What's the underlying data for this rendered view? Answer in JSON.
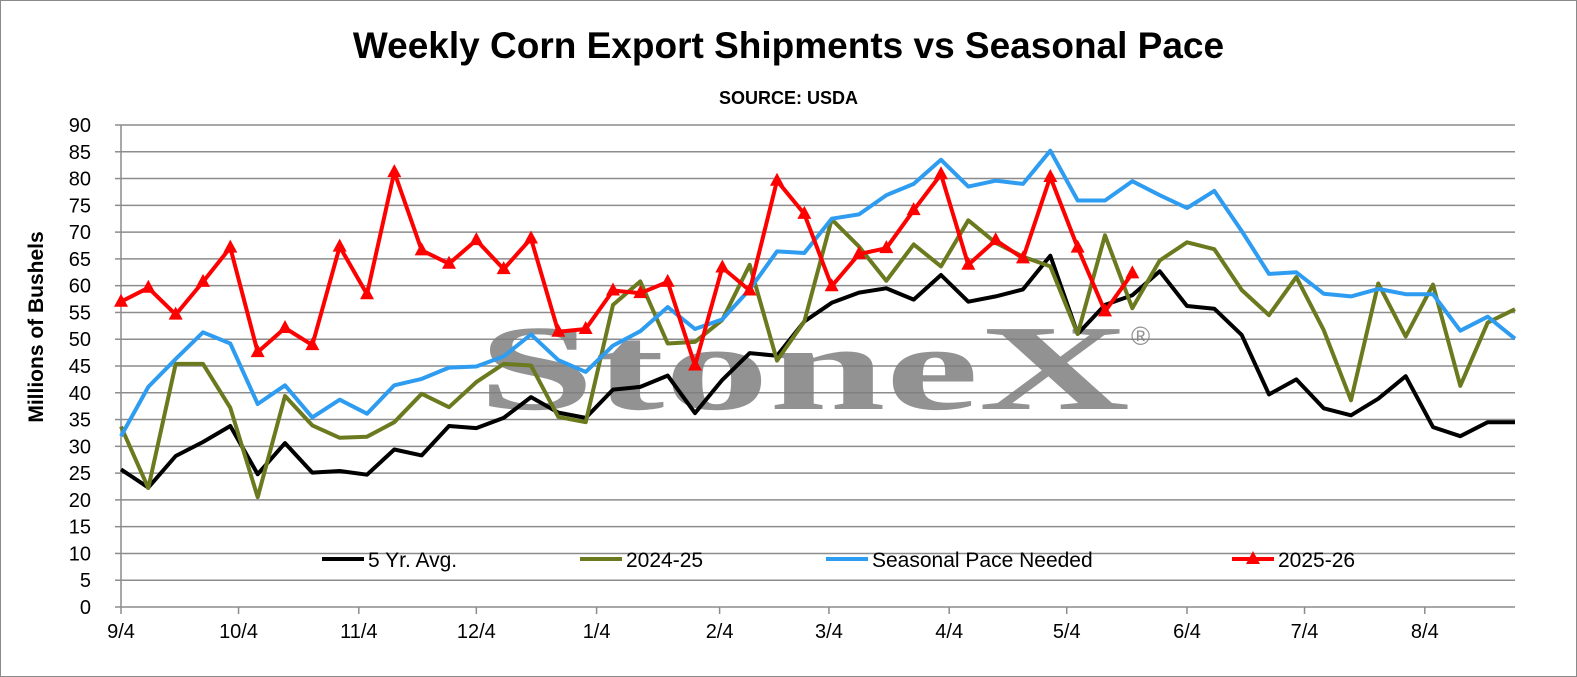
{
  "chart_data": {
    "type": "line",
    "title": "Weekly Corn Export Shipments vs Seasonal Pace",
    "subtitle": "SOURCE: USDA",
    "xlabel": "",
    "ylabel": "Millions of Bushels",
    "ylim": [
      0,
      90
    ],
    "yticks": [
      0,
      5,
      10,
      15,
      20,
      25,
      30,
      35,
      40,
      45,
      50,
      55,
      60,
      65,
      70,
      75,
      80,
      85,
      90
    ],
    "grid": "horizontal",
    "legend_position": "bottom-inside",
    "x_week_count": 52,
    "x_tick_labels": [
      {
        "label": "9/4",
        "week": 0
      },
      {
        "label": "10/4",
        "week": 4.3
      },
      {
        "label": "11/4",
        "week": 8.7
      },
      {
        "label": "12/4",
        "week": 13
      },
      {
        "label": "1/4",
        "week": 17.4
      },
      {
        "label": "2/4",
        "week": 21.9
      },
      {
        "label": "3/4",
        "week": 25.9
      },
      {
        "label": "4/4",
        "week": 30.3
      },
      {
        "label": "5/4",
        "week": 34.6
      },
      {
        "label": "6/4",
        "week": 39.0
      },
      {
        "label": "7/4",
        "week": 43.3
      },
      {
        "label": "8/4",
        "week": 47.7
      }
    ],
    "series": [
      {
        "name": "5 Yr. Avg.",
        "color": "#000000",
        "marker": "none",
        "values": [
          25.7,
          22.3,
          28.2,
          30.8,
          33.8,
          24.8,
          30.6,
          25.1,
          25.4,
          24.7,
          29.4,
          28.3,
          33.8,
          33.4,
          35.3,
          39.2,
          36.3,
          35.3,
          40.6,
          41.1,
          43.2,
          36.2,
          42.4,
          47.4,
          46.9,
          53.3,
          56.8,
          58.7,
          59.5,
          57.4,
          62.0,
          57.0,
          58.0,
          59.3,
          65.6,
          51.0,
          56.4,
          58.2,
          62.7,
          56.2,
          55.7,
          50.8,
          39.7,
          42.5,
          37.1,
          35.8,
          38.9,
          43.1,
          33.6,
          31.9,
          34.5,
          34.5
        ]
      },
      {
        "name": "2024-25",
        "color": "#6b7a1e",
        "marker": "none",
        "values": [
          33.7,
          22.2,
          45.4,
          45.4,
          37.2,
          20.5,
          39.4,
          33.9,
          31.6,
          31.8,
          34.5,
          39.8,
          37.3,
          42.0,
          45.4,
          45.1,
          35.5,
          34.5,
          56.4,
          60.8,
          49.2,
          49.5,
          53.6,
          63.9,
          46.0,
          53.3,
          72.4,
          67.3,
          60.9,
          67.7,
          63.6,
          72.2,
          68.0,
          65.4,
          63.6,
          51.0,
          69.4,
          55.8,
          64.7,
          68.1,
          66.8,
          59.2,
          54.5,
          61.6,
          51.7,
          38.6,
          60.4,
          50.5,
          60.2,
          41.3,
          53.1,
          55.6
        ]
      },
      {
        "name": "Seasonal Pace Needed",
        "color": "#2e9cf0",
        "marker": "none",
        "values": [
          31.9,
          41.1,
          46.3,
          51.3,
          49.2,
          37.9,
          41.4,
          35.4,
          38.7,
          36.1,
          41.4,
          42.6,
          44.7,
          44.9,
          46.8,
          50.9,
          46.1,
          43.9,
          48.8,
          51.5,
          56.0,
          51.9,
          53.7,
          59.3,
          66.4,
          66.1,
          72.5,
          73.3,
          76.9,
          79.0,
          83.5,
          78.5,
          79.6,
          79.0,
          85.2,
          75.9,
          75.9,
          79.5,
          76.9,
          74.5,
          77.7,
          70.2,
          62.2,
          62.5,
          58.5,
          58.0,
          59.4,
          58.4,
          58.4,
          51.6,
          54.2,
          50.1
        ]
      },
      {
        "name": "2025-26",
        "color": "#ff0000",
        "marker": "triangle",
        "values": [
          57.0,
          59.6,
          54.6,
          60.7,
          67.1,
          47.6,
          52.1,
          48.9,
          67.3,
          58.4,
          81.2,
          66.6,
          64.1,
          68.5,
          63.1,
          68.8,
          51.4,
          51.9,
          59.1,
          58.6,
          60.7,
          45.1,
          63.4,
          59.1,
          79.6,
          73.4,
          59.9,
          65.9,
          67.0,
          74.1,
          80.8,
          63.9,
          68.5,
          65.1,
          80.3,
          67.1,
          55.2,
          62.3
        ]
      }
    ],
    "watermark": "StoneX",
    "watermark_mark": "®"
  }
}
